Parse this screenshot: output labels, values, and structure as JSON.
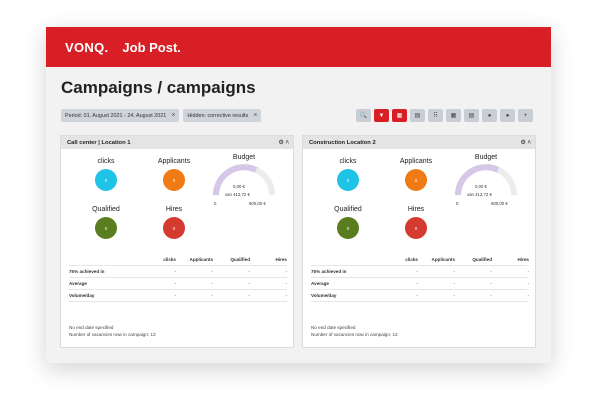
{
  "header": {
    "brand": "VONQ.",
    "product": "Job Post."
  },
  "page_title": "Campaigns / campaigns",
  "filters": [
    {
      "label": "Period: 01. August 2021 - 24. August 2021",
      "close": "×"
    },
    {
      "label": "Hidden: corrective results",
      "close": "×"
    }
  ],
  "toolbar": [
    "🔍",
    "▼",
    "▦",
    "▤",
    "⠿",
    "▦",
    "▤",
    "●",
    "●",
    "+"
  ],
  "colors": {
    "accent": "#d71f25",
    "clicks": "#1fc3e6",
    "applicants": "#f07a14",
    "qualified": "#5a7d1e",
    "hires": "#d53a30",
    "gauge": "#d6c7e6"
  },
  "panels": [
    {
      "title": "Call center | Location 1",
      "metrics": {
        "clicks": "clicks",
        "applicants": "Applicants",
        "qualified": "Qualified",
        "hires": "Hires"
      },
      "values": {
        "clicks": "0",
        "applicants": "0",
        "qualified": "0",
        "hires": "0"
      },
      "budget": {
        "label": "Budget",
        "value": "0,00 €",
        "of": "van 412,72 €",
        "min": "0",
        "max": "600,00 €"
      },
      "table": {
        "headers": [
          "",
          "clicks",
          "Applicants",
          "Qualified",
          "Hires"
        ],
        "rows": [
          [
            "75% achieved in",
            "-",
            "-",
            "-",
            "-"
          ],
          [
            "Average",
            "-",
            "-",
            "-",
            "-"
          ],
          [
            "Volume/day",
            "-",
            "-",
            "-",
            "-"
          ]
        ]
      },
      "footer1": "No end date specified",
      "footer2": "Number of vacancies now in campaign: 13"
    },
    {
      "title": "Construction Location 2",
      "metrics": {
        "clicks": "clicks",
        "applicants": "Applicants",
        "qualified": "Qualified",
        "hires": "Hires"
      },
      "values": {
        "clicks": "0",
        "applicants": "0",
        "qualified": "0",
        "hires": "0"
      },
      "budget": {
        "label": "Budget",
        "value": "0,00 €",
        "of": "van 412,72 €",
        "min": "0",
        "max": "600,00 €"
      },
      "table": {
        "headers": [
          "",
          "clicks",
          "Applicants",
          "Qualified",
          "Hires"
        ],
        "rows": [
          [
            "75% achieved in",
            "-",
            "-",
            "-",
            "-"
          ],
          [
            "Average",
            "-",
            "-",
            "-",
            "-"
          ],
          [
            "Volume/day",
            "-",
            "-",
            "-",
            "-"
          ]
        ]
      },
      "footer1": "No end date specified",
      "footer2": "Number of vacancies now in campaign: 13"
    }
  ]
}
